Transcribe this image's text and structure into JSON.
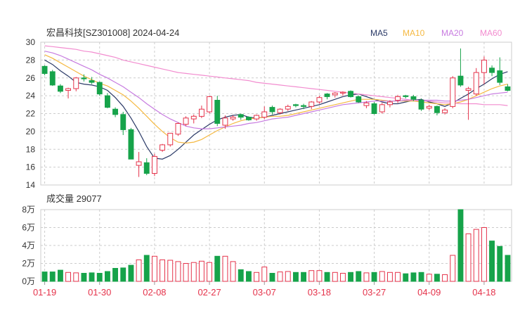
{
  "header": {
    "title": "宏昌科技[SZ301008] 2024-04-24",
    "legend": [
      {
        "label": "MA5",
        "color": "#2b3a67"
      },
      {
        "label": "MA10",
        "color": "#f5b942"
      },
      {
        "label": "MA20",
        "color": "#c77be0"
      },
      {
        "label": "MA60",
        "color": "#f28ccf"
      }
    ]
  },
  "colors": {
    "up": "#e5334b",
    "down": "#16a34a",
    "grid": "#cccccc",
    "axis_text": "#333333",
    "date_text": "#e5334b"
  },
  "chart_data": {
    "type": "candlestick",
    "price_axis": {
      "min": 14,
      "max": 30,
      "ticks": [
        "30",
        "28",
        "26",
        "24",
        "22",
        "20",
        "18",
        "16",
        "14"
      ]
    },
    "volume_axis": {
      "max_wan": 8,
      "ticks": [
        "8万",
        "6万",
        "4万",
        "2万",
        "0万"
      ]
    },
    "volume_title": "成交量 29077",
    "date_ticks": [
      {
        "index": 0,
        "label": "01-19"
      },
      {
        "index": 7,
        "label": "01-30"
      },
      {
        "index": 14,
        "label": "02-08"
      },
      {
        "index": 21,
        "label": "02-27"
      },
      {
        "index": 28,
        "label": "03-07"
      },
      {
        "index": 35,
        "label": "03-18"
      },
      {
        "index": 42,
        "label": "03-27"
      },
      {
        "index": 49,
        "label": "04-09"
      },
      {
        "index": 56,
        "label": "04-18"
      }
    ],
    "candles": [
      {
        "o": 26.5,
        "h": 27.4,
        "l": 26.3,
        "c": 27.3,
        "dir": "down",
        "v": 1.05
      },
      {
        "o": 26.7,
        "h": 26.9,
        "l": 25.1,
        "c": 25.2,
        "dir": "down",
        "v": 1.05
      },
      {
        "o": 25.1,
        "h": 25.3,
        "l": 24.3,
        "c": 24.5,
        "dir": "down",
        "v": 1.25
      },
      {
        "o": 24.6,
        "h": 24.9,
        "l": 23.7,
        "c": 24.8,
        "dir": "up",
        "v": 1.0
      },
      {
        "o": 24.8,
        "h": 26.1,
        "l": 24.5,
        "c": 26.0,
        "dir": "up",
        "v": 0.95
      },
      {
        "o": 26.0,
        "h": 26.4,
        "l": 25.6,
        "c": 25.9,
        "dir": "down",
        "v": 0.9
      },
      {
        "o": 25.7,
        "h": 26.1,
        "l": 25.3,
        "c": 25.5,
        "dir": "down",
        "v": 0.95
      },
      {
        "o": 25.5,
        "h": 25.6,
        "l": 24.0,
        "c": 24.2,
        "dir": "down",
        "v": 0.9
      },
      {
        "o": 24.0,
        "h": 24.3,
        "l": 22.6,
        "c": 22.7,
        "dir": "down",
        "v": 1.1
      },
      {
        "o": 22.5,
        "h": 22.7,
        "l": 21.6,
        "c": 21.9,
        "dir": "down",
        "v": 1.45
      },
      {
        "o": 21.9,
        "h": 22.2,
        "l": 19.6,
        "c": 20.2,
        "dir": "down",
        "v": 1.5
      },
      {
        "o": 20.2,
        "h": 20.4,
        "l": 16.9,
        "c": 16.9,
        "dir": "down",
        "v": 1.8
      },
      {
        "o": 16.2,
        "h": 17.7,
        "l": 14.9,
        "c": 16.6,
        "dir": "up",
        "v": 2.4
      },
      {
        "o": 16.5,
        "h": 17.0,
        "l": 15.1,
        "c": 15.3,
        "dir": "down",
        "v": 2.9
      },
      {
        "o": 15.3,
        "h": 17.5,
        "l": 15.0,
        "c": 17.2,
        "dir": "up",
        "v": 2.8
      },
      {
        "o": 17.9,
        "h": 18.6,
        "l": 17.7,
        "c": 18.5,
        "dir": "up",
        "v": 2.4
      },
      {
        "o": 18.5,
        "h": 19.8,
        "l": 18.3,
        "c": 19.8,
        "dir": "up",
        "v": 2.35
      },
      {
        "o": 19.7,
        "h": 21.0,
        "l": 19.5,
        "c": 20.9,
        "dir": "up",
        "v": 2.2
      },
      {
        "o": 20.8,
        "h": 21.7,
        "l": 20.6,
        "c": 21.5,
        "dir": "up",
        "v": 2.0
      },
      {
        "o": 21.4,
        "h": 21.9,
        "l": 20.9,
        "c": 21.7,
        "dir": "up",
        "v": 2.1
      },
      {
        "o": 21.7,
        "h": 22.9,
        "l": 21.5,
        "c": 22.5,
        "dir": "up",
        "v": 2.25
      },
      {
        "o": 22.2,
        "h": 24.0,
        "l": 22.0,
        "c": 23.9,
        "dir": "up",
        "v": 2.1
      },
      {
        "o": 23.5,
        "h": 24.0,
        "l": 20.6,
        "c": 20.9,
        "dir": "down",
        "v": 2.8
      },
      {
        "o": 20.7,
        "h": 21.8,
        "l": 20.3,
        "c": 21.5,
        "dir": "up",
        "v": 2.8
      },
      {
        "o": 21.4,
        "h": 21.8,
        "l": 21.2,
        "c": 21.6,
        "dir": "up",
        "v": 2.2
      },
      {
        "o": 21.9,
        "h": 22.0,
        "l": 21.3,
        "c": 21.6,
        "dir": "down",
        "v": 1.3
      },
      {
        "o": 21.6,
        "h": 21.7,
        "l": 21.2,
        "c": 21.3,
        "dir": "down",
        "v": 1.1
      },
      {
        "o": 21.4,
        "h": 21.9,
        "l": 21.2,
        "c": 21.8,
        "dir": "up",
        "v": 1.0
      },
      {
        "o": 21.6,
        "h": 22.8,
        "l": 21.4,
        "c": 22.2,
        "dir": "up",
        "v": 1.6
      },
      {
        "o": 22.2,
        "h": 22.9,
        "l": 21.9,
        "c": 22.7,
        "dir": "down",
        "v": 0.9
      },
      {
        "o": 22.1,
        "h": 22.6,
        "l": 21.9,
        "c": 22.5,
        "dir": "up",
        "v": 1.05
      },
      {
        "o": 22.5,
        "h": 23.0,
        "l": 22.3,
        "c": 22.8,
        "dir": "up",
        "v": 1.1
      },
      {
        "o": 22.9,
        "h": 23.1,
        "l": 22.7,
        "c": 23.0,
        "dir": "down",
        "v": 1.0
      },
      {
        "o": 22.9,
        "h": 23.1,
        "l": 22.5,
        "c": 22.8,
        "dir": "down",
        "v": 1.0
      },
      {
        "o": 22.8,
        "h": 23.4,
        "l": 22.5,
        "c": 23.3,
        "dir": "up",
        "v": 1.2
      },
      {
        "o": 23.3,
        "h": 24.0,
        "l": 23.1,
        "c": 23.8,
        "dir": "up",
        "v": 1.2
      },
      {
        "o": 23.9,
        "h": 24.3,
        "l": 23.6,
        "c": 24.2,
        "dir": "down",
        "v": 1.0
      },
      {
        "o": 24.1,
        "h": 24.4,
        "l": 23.8,
        "c": 24.3,
        "dir": "up",
        "v": 1.0
      },
      {
        "o": 24.3,
        "h": 24.5,
        "l": 24.0,
        "c": 24.4,
        "dir": "up",
        "v": 0.9
      },
      {
        "o": 24.5,
        "h": 24.6,
        "l": 23.8,
        "c": 23.9,
        "dir": "down",
        "v": 1.0
      },
      {
        "o": 23.9,
        "h": 24.0,
        "l": 23.2,
        "c": 23.3,
        "dir": "down",
        "v": 1.1
      },
      {
        "o": 23.2,
        "h": 23.4,
        "l": 22.6,
        "c": 22.9,
        "dir": "up",
        "v": 0.95
      },
      {
        "o": 23.1,
        "h": 23.3,
        "l": 21.9,
        "c": 22.0,
        "dir": "down",
        "v": 1.0
      },
      {
        "o": 22.2,
        "h": 23.2,
        "l": 22.0,
        "c": 23.0,
        "dir": "up",
        "v": 1.1
      },
      {
        "o": 23.0,
        "h": 23.5,
        "l": 22.7,
        "c": 23.3,
        "dir": "up",
        "v": 1.0
      },
      {
        "o": 23.5,
        "h": 24.1,
        "l": 23.2,
        "c": 23.9,
        "dir": "up",
        "v": 1.0
      },
      {
        "o": 23.9,
        "h": 24.1,
        "l": 23.7,
        "c": 24.0,
        "dir": "down",
        "v": 0.85
      },
      {
        "o": 23.9,
        "h": 24.1,
        "l": 23.4,
        "c": 23.6,
        "dir": "down",
        "v": 0.95
      },
      {
        "o": 23.5,
        "h": 23.7,
        "l": 22.3,
        "c": 22.5,
        "dir": "down",
        "v": 1.0
      },
      {
        "o": 22.6,
        "h": 23.0,
        "l": 22.4,
        "c": 22.8,
        "dir": "up",
        "v": 0.8
      },
      {
        "o": 22.8,
        "h": 22.9,
        "l": 21.8,
        "c": 22.1,
        "dir": "down",
        "v": 0.8
      },
      {
        "o": 22.1,
        "h": 22.6,
        "l": 21.9,
        "c": 22.4,
        "dir": "up",
        "v": 0.75
      },
      {
        "o": 22.8,
        "h": 26.2,
        "l": 22.6,
        "c": 26.0,
        "dir": "up",
        "v": 2.9
      },
      {
        "o": 26.2,
        "h": 29.3,
        "l": 25.0,
        "c": 25.2,
        "dir": "down",
        "v": 8.0
      },
      {
        "o": 24.6,
        "h": 25.0,
        "l": 21.3,
        "c": 24.8,
        "dir": "up",
        "v": 5.3
      },
      {
        "o": 24.2,
        "h": 27.1,
        "l": 24.0,
        "c": 26.6,
        "dir": "up",
        "v": 5.8
      },
      {
        "o": 26.6,
        "h": 28.4,
        "l": 25.3,
        "c": 28.0,
        "dir": "up",
        "v": 6.0
      },
      {
        "o": 27.1,
        "h": 27.4,
        "l": 26.2,
        "c": 26.6,
        "dir": "down",
        "v": 4.5
      },
      {
        "o": 26.8,
        "h": 28.3,
        "l": 25.2,
        "c": 25.5,
        "dir": "down",
        "v": 3.9
      },
      {
        "o": 25.0,
        "h": 25.3,
        "l": 24.5,
        "c": 24.6,
        "dir": "down",
        "v": 2.9
      }
    ],
    "ma_lines": {
      "MA5": [
        28.0,
        27.5,
        26.8,
        26.2,
        25.5,
        25.3,
        25.2,
        25.0,
        24.6,
        23.8,
        22.8,
        21.5,
        20.0,
        18.3,
        17.0,
        16.9,
        17.3,
        18.0,
        18.8,
        19.6,
        20.2,
        20.8,
        21.3,
        21.6,
        21.8,
        21.9,
        21.6,
        21.5,
        21.6,
        21.8,
        22.0,
        22.2,
        22.4,
        22.6,
        22.8,
        23.0,
        23.3,
        23.6,
        23.9,
        24.1,
        24.2,
        23.9,
        23.6,
        23.3,
        23.1,
        23.1,
        23.3,
        23.5,
        23.6,
        23.3,
        23.1,
        22.8,
        23.2,
        23.7,
        24.2,
        24.8,
        25.3,
        25.9,
        26.4,
        26.7
      ],
      "MA10": [
        28.6,
        28.2,
        27.7,
        27.2,
        26.7,
        26.2,
        25.8,
        25.4,
        25.1,
        24.6,
        24.1,
        23.4,
        22.6,
        21.7,
        20.8,
        20.0,
        19.3,
        18.8,
        18.7,
        18.8,
        19.1,
        19.6,
        20.1,
        20.5,
        20.9,
        21.2,
        21.4,
        21.5,
        21.6,
        21.7,
        21.7,
        21.8,
        22.0,
        22.2,
        22.4,
        22.6,
        22.8,
        23.0,
        23.2,
        23.4,
        23.6,
        23.6,
        23.6,
        23.5,
        23.4,
        23.4,
        23.4,
        23.4,
        23.3,
        23.2,
        23.1,
        23.0,
        23.1,
        23.3,
        23.6,
        24.0,
        24.4,
        24.8,
        25.1,
        25.3
      ],
      "MA20": [
        29.0,
        28.8,
        28.5,
        28.1,
        27.7,
        27.3,
        26.9,
        26.4,
        26.0,
        25.5,
        25.0,
        24.4,
        23.8,
        23.1,
        22.5,
        21.9,
        21.4,
        21.0,
        20.6,
        20.4,
        20.3,
        20.3,
        20.4,
        20.5,
        20.6,
        20.7,
        20.9,
        21.0,
        21.2,
        21.4,
        21.5,
        21.6,
        21.8,
        22.0,
        22.2,
        22.4,
        22.6,
        22.8,
        23.0,
        23.1,
        23.2,
        23.3,
        23.4,
        23.4,
        23.4,
        23.4,
        23.5,
        23.5,
        23.5,
        23.5,
        23.5,
        23.4,
        23.4,
        23.5,
        23.6,
        23.8,
        24.0,
        24.2,
        24.3,
        24.4
      ],
      "MA60": [
        29.6,
        29.5,
        29.4,
        29.3,
        29.2,
        29.0,
        28.9,
        28.7,
        28.5,
        28.3,
        28.0,
        27.8,
        27.6,
        27.4,
        27.2,
        27.0,
        26.8,
        26.6,
        26.5,
        26.4,
        26.3,
        26.2,
        26.1,
        26.0,
        25.9,
        25.8,
        25.7,
        25.5,
        25.4,
        25.3,
        25.2,
        25.1,
        25.0,
        24.9,
        24.8,
        24.7,
        24.6,
        24.5,
        24.4,
        24.3,
        24.2,
        24.1,
        24.0,
        23.9,
        23.8,
        23.7,
        23.6,
        23.5,
        23.4,
        23.4,
        23.3,
        23.2,
        23.2,
        23.1,
        23.1,
        23.1,
        23.0,
        23.0,
        23.0,
        22.9
      ]
    }
  }
}
